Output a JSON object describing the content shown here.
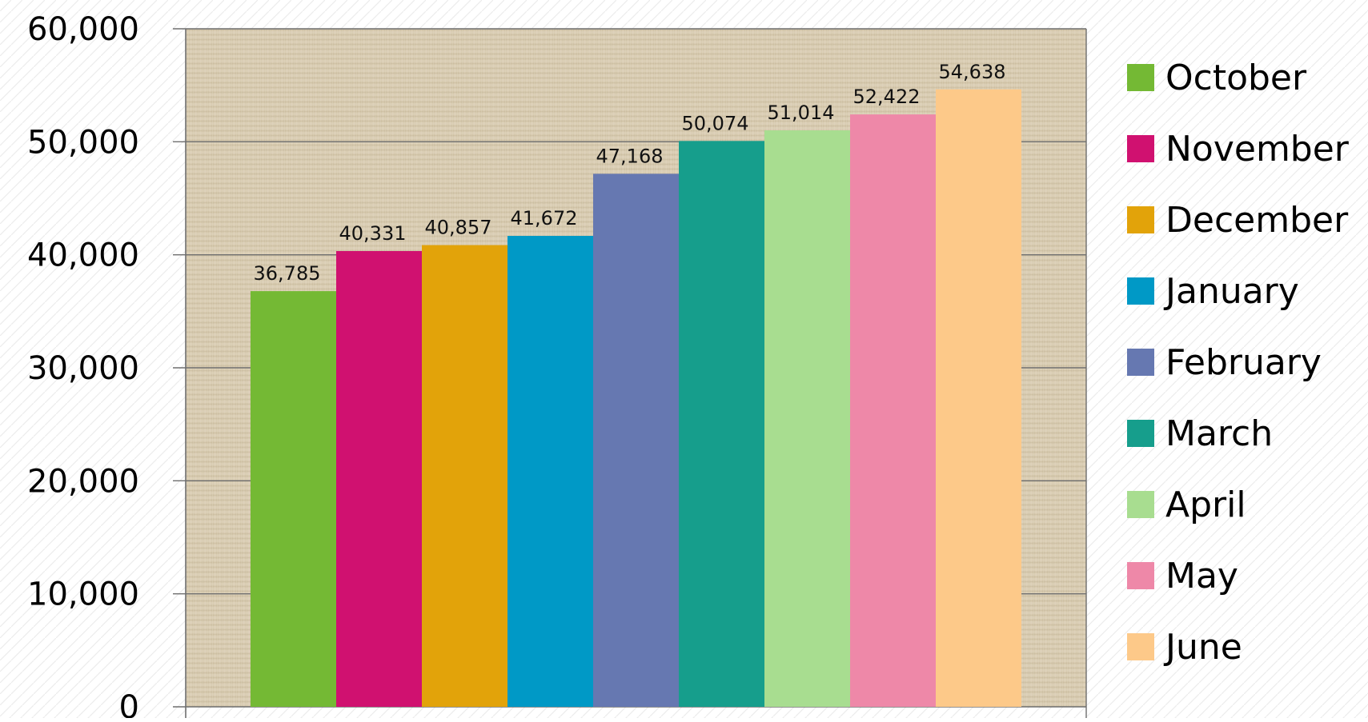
{
  "chart_data": {
    "type": "bar",
    "categories": [
      "October",
      "November",
      "December",
      "January",
      "February",
      "March",
      "April",
      "May",
      "June"
    ],
    "values": [
      36785,
      40331,
      40857,
      41672,
      47168,
      50074,
      51014,
      52422,
      54638
    ],
    "value_labels": [
      "36,785",
      "40,331",
      "40,857",
      "41,672",
      "47,168",
      "50,074",
      "51,014",
      "52,422",
      "54,638"
    ],
    "colors": [
      "#74b934",
      "#d01170",
      "#e2a30a",
      "#0099c6",
      "#6678b1",
      "#169e8c",
      "#a8dd90",
      "#ee88a8",
      "#fdc989"
    ],
    "y_ticks": [
      0,
      10000,
      20000,
      30000,
      40000,
      50000,
      60000
    ],
    "y_tick_labels": [
      "0",
      "10,000",
      "20,000",
      "30,000",
      "40,000",
      "50,000",
      "60,000"
    ],
    "ylim": [
      0,
      60000
    ],
    "grid": true,
    "legend_position": "right",
    "title": "",
    "xlabel": "",
    "ylabel": ""
  }
}
